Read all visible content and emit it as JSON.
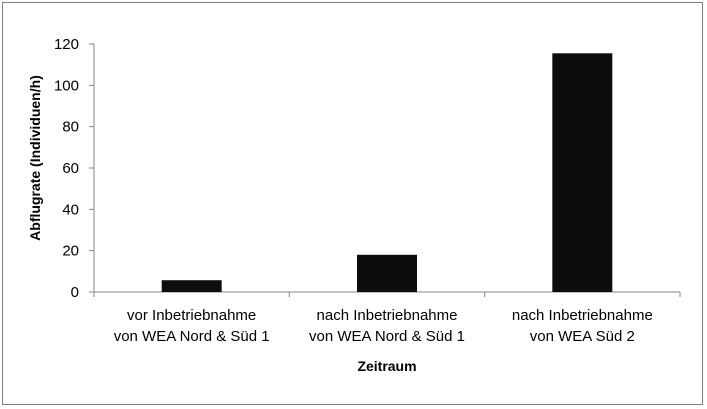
{
  "chart_data": {
    "type": "bar",
    "categories": [
      [
        "vor Inbetriebnahme",
        "von WEA Nord & Süd 1"
      ],
      [
        "nach Inbetriebnahme",
        "von WEA Nord & Süd 1"
      ],
      [
        "nach Inbetriebnahme",
        "von WEA Süd 2"
      ]
    ],
    "values": [
      5.7,
      18,
      115.5
    ],
    "title": "",
    "xlabel": "Zeitraum",
    "ylabel": "Abflugrate (Individuen/h)",
    "ylim": [
      0,
      120
    ],
    "yticks": [
      0,
      20,
      40,
      60,
      80,
      100,
      120
    ],
    "grid": false,
    "bar_color": "#0d0d0d",
    "axis_color": "#868686"
  }
}
